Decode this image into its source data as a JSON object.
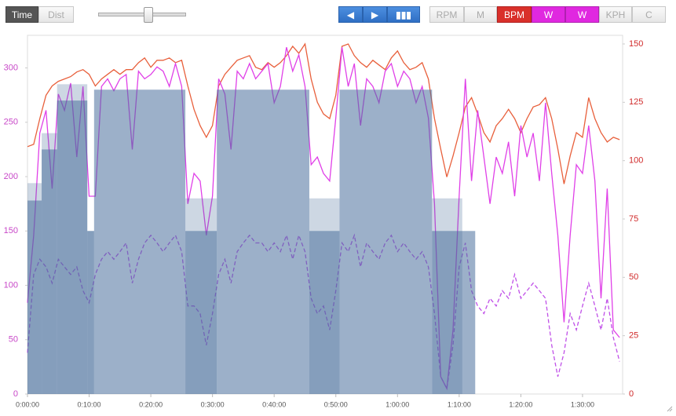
{
  "toolbar": {
    "modes": [
      "Time",
      "Dist"
    ],
    "metrics": [
      "RPM",
      "M",
      "KPH",
      "C"
    ]
  },
  "chart_data": {
    "type": "line",
    "x": [
      0,
      1,
      2,
      3,
      4,
      5,
      6,
      7,
      8,
      9,
      10,
      11,
      12,
      13,
      14,
      15,
      16,
      17,
      18,
      19,
      20,
      21,
      22,
      23,
      24,
      25,
      26,
      27,
      28,
      29,
      30,
      31,
      32,
      33,
      34,
      35,
      36,
      37,
      38,
      39,
      40,
      41,
      42,
      43,
      44,
      45,
      46,
      47,
      48,
      49,
      50,
      51,
      52,
      53,
      54,
      55,
      56,
      57,
      58,
      59,
      60,
      61,
      62,
      63,
      64,
      65,
      66,
      67,
      68,
      69,
      70,
      71,
      72,
      73,
      74,
      75,
      76,
      77,
      78,
      79,
      80,
      81,
      82,
      83,
      84,
      85,
      86,
      87,
      88,
      89,
      90,
      91,
      92,
      93,
      94,
      95,
      96
    ],
    "xlim": [
      0,
      96.5
    ],
    "xticks": [
      {
        "value": 0,
        "label": "0:00:00"
      },
      {
        "value": 10,
        "label": "0:10:00"
      },
      {
        "value": 20,
        "label": "0:20:00"
      },
      {
        "value": 30,
        "label": "0:30:00"
      },
      {
        "value": 40,
        "label": "0:40:00"
      },
      {
        "value": 50,
        "label": "0:50:00"
      },
      {
        "value": 60,
        "label": "1:00:00"
      },
      {
        "value": 70,
        "label": "1:10:00"
      },
      {
        "value": 80,
        "label": "1:20:00"
      },
      {
        "value": 90,
        "label": "1:30:00"
      }
    ],
    "ylim": [
      0,
      330
    ],
    "yticks": [
      0,
      50,
      100,
      150,
      200,
      250,
      300
    ],
    "y2lim": [
      0,
      153.7
    ],
    "y2ticks": [
      0,
      25,
      50,
      75,
      100,
      125,
      150
    ],
    "series": [
      {
        "name": "BPM",
        "color": "#e8603c",
        "axis": "y2",
        "values": [
          106,
          107,
          118,
          128,
          132,
          134,
          135,
          136,
          138,
          139,
          137,
          132,
          135,
          137,
          139,
          137,
          139,
          139,
          142,
          144,
          140,
          143,
          143,
          144,
          142,
          143,
          132,
          122,
          115,
          110,
          115,
          132,
          137,
          140,
          143,
          144,
          145,
          140,
          139,
          142,
          140,
          142,
          145,
          149,
          146,
          150,
          135,
          125,
          120,
          118,
          128,
          149,
          150,
          145,
          142,
          140,
          143,
          141,
          139,
          144,
          147,
          142,
          139,
          140,
          142,
          135,
          118,
          105,
          93,
          102,
          112,
          123,
          127,
          120,
          112,
          108,
          115,
          118,
          122,
          118,
          112,
          118,
          123,
          124,
          127,
          118,
          105,
          90,
          102,
          112,
          110,
          127,
          118,
          112,
          108,
          110,
          109
        ]
      },
      {
        "name": "W",
        "color": "#e040e8",
        "values": [
          84,
          146,
          240,
          261,
          189,
          276,
          261,
          286,
          218,
          283,
          182,
          182,
          283,
          290,
          279,
          290,
          294,
          225,
          297,
          290,
          294,
          301,
          297,
          283,
          304,
          283,
          175,
          203,
          196,
          146,
          182,
          290,
          276,
          225,
          297,
          290,
          304,
          290,
          297,
          304,
          268,
          283,
          319,
          297,
          312,
          283,
          211,
          218,
          203,
          196,
          254,
          319,
          283,
          304,
          247,
          290,
          283,
          268,
          297,
          304,
          283,
          297,
          290,
          268,
          283,
          254,
          175,
          16,
          5,
          59,
          182,
          290,
          196,
          261,
          218,
          175,
          218,
          203,
          232,
          182,
          247,
          218,
          240,
          196,
          268,
          203,
          146,
          66,
          146,
          211,
          203,
          247,
          196,
          88,
          189,
          59,
          52
        ]
      },
      {
        "name": "W",
        "color": "#c050e8",
        "dashed": true,
        "values": [
          38,
          110,
          124,
          117,
          102,
          124,
          117,
          110,
          117,
          95,
          84,
          110,
          124,
          131,
          124,
          131,
          139,
          102,
          124,
          139,
          146,
          139,
          131,
          139,
          146,
          131,
          81,
          81,
          74,
          45,
          74,
          110,
          124,
          102,
          131,
          139,
          146,
          139,
          139,
          131,
          139,
          131,
          146,
          124,
          146,
          131,
          88,
          74,
          81,
          59,
          95,
          139,
          131,
          146,
          117,
          139,
          131,
          124,
          139,
          146,
          131,
          139,
          131,
          124,
          131,
          117,
          74,
          16,
          5,
          45,
          117,
          139,
          95,
          81,
          74,
          88,
          81,
          95,
          88,
          110,
          88,
          95,
          102,
          95,
          88,
          45,
          16,
          38,
          74,
          59,
          81,
          102,
          81,
          59,
          88,
          52,
          30
        ]
      }
    ],
    "lap_blocks": [
      {
        "start": 0,
        "end": 2.3,
        "value": 194
      },
      {
        "start": 2.3,
        "end": 4.8,
        "value": 240
      },
      {
        "start": 4.8,
        "end": 9.7,
        "value": 285
      },
      {
        "start": 9.7,
        "end": 10.8,
        "value": 150
      },
      {
        "start": 25.6,
        "end": 30.7,
        "value": 180
      },
      {
        "start": 45.7,
        "end": 50.6,
        "value": 180
      },
      {
        "start": 65.6,
        "end": 70.5,
        "value": 180
      }
    ],
    "interval_blocks": [
      {
        "start": 0,
        "end": 2.3,
        "value": 178
      },
      {
        "start": 2.3,
        "end": 4.8,
        "value": 225
      },
      {
        "start": 4.8,
        "end": 9.7,
        "value": 270
      },
      {
        "start": 9.7,
        "end": 10.8,
        "value": 150
      },
      {
        "start": 10.8,
        "end": 25.6,
        "value": 280
      },
      {
        "start": 25.6,
        "end": 30.7,
        "value": 150
      },
      {
        "start": 30.7,
        "end": 45.7,
        "value": 280
      },
      {
        "start": 45.7,
        "end": 50.6,
        "value": 150
      },
      {
        "start": 50.6,
        "end": 65.6,
        "value": 280
      },
      {
        "start": 65.6,
        "end": 72.6,
        "value": 150
      }
    ],
    "block_color": "#4a6f9c",
    "grid": false
  }
}
